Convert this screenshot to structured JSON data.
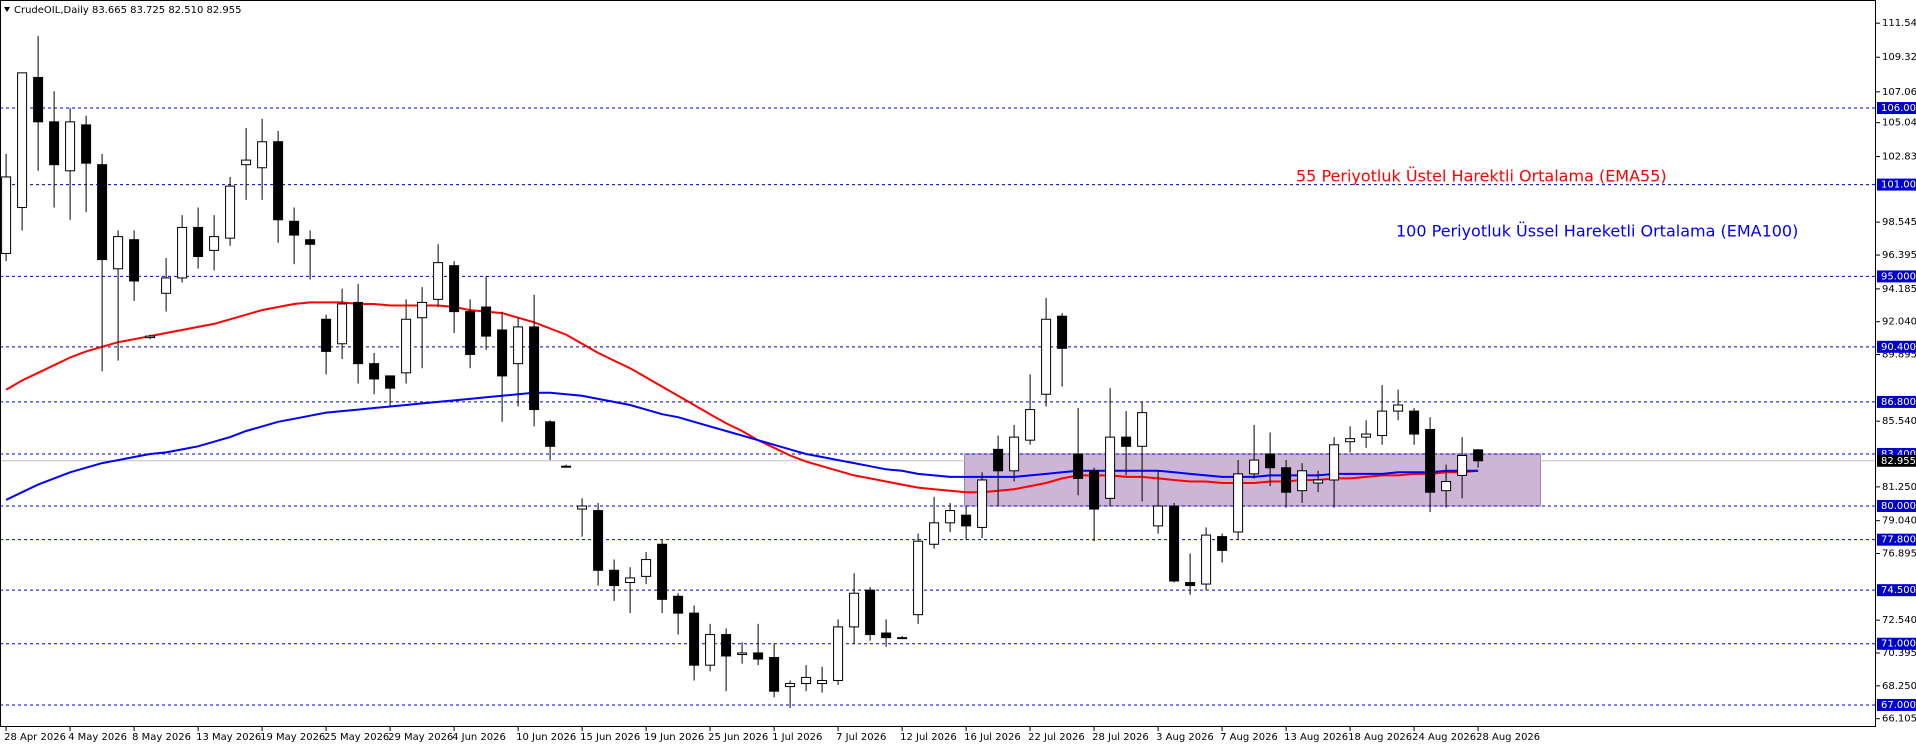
{
  "chart_data": {
    "type": "candlestick",
    "title": "CrudeOIL,Daily  83.665 83.725 82.510 82.955",
    "categories": [
      "28 Apr 2026",
      null,
      null,
      null,
      "4 May 2026",
      null,
      null,
      null,
      "8 May 2026",
      null,
      null,
      null,
      "13 May 2026",
      null,
      null,
      null,
      "19 May 2026",
      null,
      null,
      null,
      "25 May 2026",
      null,
      null,
      null,
      "29 May 2026",
      null,
      null,
      null,
      "4 Jun 2026",
      null,
      null,
      null,
      "10 Jun 2026",
      null,
      null,
      null,
      "15 Jun 2026",
      null,
      null,
      null,
      "19 Jun 2026",
      null,
      null,
      null,
      "25 Jun 2026",
      null,
      null,
      null,
      "1 Jul 2026",
      null,
      null,
      null,
      "7 Jul 2026",
      null,
      null,
      null,
      "12 Jul 2026",
      null,
      null,
      null,
      "16 Jul 2026",
      null,
      null,
      null,
      "22 Jul 2026",
      null,
      null,
      null,
      "28 Jul 2026",
      null,
      null,
      null,
      "3 Aug 2026",
      null,
      null,
      null,
      "7 Aug 2026",
      null,
      null,
      null,
      "13 Aug 2026",
      null,
      null,
      null,
      "18 Aug 2026",
      null,
      null,
      null,
      "24 Aug 2026",
      null,
      null,
      null,
      "28 Aug 2026"
    ],
    "open": [
      96.5,
      99.5,
      108.0,
      105.1,
      101.9,
      104.9,
      102.3,
      95.5,
      97.4,
      91.0,
      93.9,
      94.9,
      98.2,
      96.7,
      97.5,
      102.3,
      102.1,
      103.8,
      98.6,
      97.4,
      92.2,
      90.6,
      93.3,
      89.3,
      88.5,
      88.7,
      92.3,
      93.5,
      95.7,
      92.7,
      93.0,
      91.5,
      89.3,
      91.7,
      85.5,
      82.6,
      79.8,
      79.7,
      75.8,
      75.0,
      75.4,
      77.5,
      74.1,
      73.0,
      69.6,
      71.6,
      70.3,
      70.4,
      70.1,
      68.2,
      68.4,
      68.4,
      68.6,
      72.1,
      74.5,
      71.7,
      71.4,
      72.9,
      77.5,
      78.9,
      79.4,
      78.6,
      83.7,
      82.3,
      84.3,
      87.3,
      92.4,
      83.4,
      82.3,
      80.5,
      84.5,
      83.9,
      78.7,
      80.0,
      75.0,
      74.9,
      78.0,
      78.3,
      82.1,
      83.4,
      82.5,
      81.0,
      81.5,
      81.7,
      84.2,
      84.5,
      84.6,
      86.2,
      86.2,
      85.0,
      81.0,
      82.0,
      83.665
    ],
    "high": [
      103,
      108.3,
      110.7,
      107.1,
      106.0,
      105.5,
      103,
      98,
      98,
      91.2,
      96.2,
      99,
      99.5,
      99,
      101.5,
      104.7,
      105.3,
      104.5,
      99.5,
      98,
      92.5,
      94.2,
      94.5,
      90.0,
      88.5,
      93.5,
      94.3,
      97.1,
      96.0,
      93.5,
      95.0,
      92.7,
      92.3,
      93.8,
      85.6,
      82.7,
      80.5,
      80.2,
      76.5,
      76.0,
      77.0,
      77.8,
      74.3,
      73.5,
      72.3,
      72.0,
      71.1,
      72.3,
      71.0,
      68.6,
      69.6,
      69.5,
      72.6,
      75.6,
      74.7,
      72.6,
      71.5,
      78.2,
      80.6,
      80.2,
      80.0,
      82.2,
      84.6,
      85.3,
      88.6,
      93.6,
      92.6,
      86.4,
      82.5,
      87.7,
      86.2,
      86.8,
      82.3,
      80.2,
      76.9,
      78.6,
      78.2,
      83.0,
      85.3,
      84.8,
      83.0,
      82.8,
      82.3,
      84.5,
      85.2,
      85.6,
      87.9,
      87.6,
      86.4,
      85.8,
      82.7,
      84.5,
      83.725
    ],
    "low": [
      96,
      98,
      101.9,
      99.5,
      98.7,
      99.2,
      88.8,
      89.5,
      93.4,
      90.9,
      92.7,
      94.6,
      95.5,
      95.4,
      97.0,
      100.0,
      100.0,
      97.2,
      95.8,
      94.8,
      88.6,
      89.6,
      88.0,
      87.3,
      86.5,
      88.0,
      89.0,
      93.0,
      91.3,
      89.0,
      90.2,
      85.5,
      86.5,
      85.2,
      83.0,
      82.5,
      78.0,
      74.8,
      73.8,
      73.0,
      74.9,
      73.0,
      71.6,
      68.6,
      69.2,
      67.9,
      69.7,
      69.6,
      67.5,
      66.8,
      67.9,
      67.8,
      68.3,
      71.0,
      71.2,
      70.8,
      71.3,
      72.3,
      77.2,
      78.3,
      77.8,
      77.9,
      80.0,
      81.6,
      84.0,
      86.5,
      87.8,
      80.7,
      77.7,
      80.0,
      82.0,
      80.3,
      78.2,
      75.0,
      74.2,
      74.5,
      76.3,
      77.8,
      81.8,
      81.3,
      79.9,
      80.2,
      80.9,
      79.9,
      83.5,
      83.8,
      84.0,
      85.6,
      84.0,
      79.6,
      79.9,
      80.5,
      82.51
    ],
    "close": [
      101.5,
      108.3,
      105.1,
      102.3,
      105.1,
      102.4,
      96.1,
      97.6,
      94.7,
      91.1,
      94.9,
      98.2,
      96.3,
      97.6,
      100.9,
      102.6,
      103.8,
      98.7,
      97.7,
      97.1,
      90.1,
      93.2,
      89.3,
      88.3,
      87.7,
      92.2,
      93.3,
      95.9,
      92.7,
      89.9,
      91.1,
      88.5,
      91.7,
      86.3,
      83.9,
      82.6,
      80.0,
      75.8,
      74.8,
      75.3,
      76.5,
      73.9,
      73.0,
      69.6,
      71.6,
      70.2,
      70.4,
      70.0,
      67.9,
      68.4,
      68.8,
      68.6,
      72.1,
      74.3,
      71.6,
      71.4,
      71.4,
      77.7,
      78.9,
      79.7,
      78.7,
      81.7,
      82.3,
      84.5,
      86.3,
      92.2,
      90.3,
      81.8,
      79.8,
      84.5,
      83.9,
      86.1,
      80.0,
      75.1,
      74.8,
      78.1,
      77.1,
      82.1,
      83.0,
      82.5,
      80.9,
      82.3,
      81.7,
      84.0,
      84.4,
      84.7,
      86.2,
      86.6,
      84.7,
      80.9,
      81.6,
      83.3,
      82.955
    ],
    "up_color": "#ffffff",
    "down_color": "#000000",
    "series": [
      {
        "name": "55 Periyotluk Üstel Harektli Ortalama (EMA55)",
        "color": "#ff0000",
        "values": [
          87.6,
          88.2,
          88.7,
          89.2,
          89.7,
          90.1,
          90.4,
          90.7,
          90.9,
          91.1,
          91.3,
          91.5,
          91.7,
          91.9,
          92.2,
          92.5,
          92.8,
          93.0,
          93.2,
          93.3,
          93.3,
          93.3,
          93.2,
          93.2,
          93.1,
          93.1,
          93.1,
          93.1,
          93.0,
          92.8,
          92.7,
          92.6,
          92.3,
          92.0,
          91.6,
          91.2,
          90.6,
          90.0,
          89.5,
          89.0,
          88.4,
          87.8,
          87.2,
          86.6,
          86.0,
          85.4,
          84.9,
          84.3,
          83.8,
          83.3,
          82.9,
          82.6,
          82.3,
          82.0,
          81.8,
          81.6,
          81.4,
          81.2,
          81.1,
          81.0,
          80.9,
          80.9,
          81.0,
          81.1,
          81.3,
          81.5,
          81.8,
          82.0,
          82.0,
          82.0,
          81.9,
          81.9,
          81.8,
          81.7,
          81.6,
          81.6,
          81.5,
          81.5,
          81.5,
          81.6,
          81.6,
          81.7,
          81.7,
          81.8,
          81.8,
          81.9,
          82.0,
          82.0,
          82.1,
          82.1,
          82.2,
          82.2,
          82.3
        ]
      },
      {
        "name": "100 Periyotluk Üssel Hareketli Ortalama (EMA100)",
        "color": "#0000ff",
        "values": [
          80.4,
          80.9,
          81.4,
          81.8,
          82.2,
          82.5,
          82.8,
          83.0,
          83.2,
          83.4,
          83.5,
          83.7,
          83.9,
          84.2,
          84.5,
          84.9,
          85.2,
          85.5,
          85.7,
          85.9,
          86.1,
          86.2,
          86.3,
          86.4,
          86.5,
          86.6,
          86.7,
          86.8,
          86.9,
          87.0,
          87.1,
          87.2,
          87.3,
          87.4,
          87.4,
          87.3,
          87.2,
          87.0,
          86.8,
          86.6,
          86.3,
          86.0,
          85.8,
          85.5,
          85.2,
          84.9,
          84.6,
          84.3,
          84.0,
          83.7,
          83.4,
          83.2,
          83.0,
          82.8,
          82.6,
          82.4,
          82.3,
          82.1,
          82.0,
          81.9,
          81.9,
          81.9,
          81.9,
          81.9,
          82.0,
          82.1,
          82.2,
          82.3,
          82.3,
          82.3,
          82.3,
          82.3,
          82.3,
          82.2,
          82.1,
          82.0,
          81.9,
          81.9,
          81.9,
          82.0,
          82.0,
          82.0,
          82.0,
          82.1,
          82.1,
          82.1,
          82.1,
          82.2,
          82.2,
          82.2,
          82.3,
          82.3,
          82.3
        ]
      }
    ],
    "ylim": [
      65.56,
      113.06
    ],
    "yticks": [
      111.545,
      {
        "value": 109.32,
        "label": "109.320"
      },
      {
        "value": 107.06,
        "label": "107.060"
      },
      105.045,
      {
        "value": 102.83,
        "label": "102.830"
      },
      98.545,
      96.395,
      94.185,
      {
        "value": 92.04,
        "label": "92.040"
      },
      89.895,
      {
        "value": 85.54,
        "label": "85.540"
      },
      {
        "value": 81.25,
        "label": "81.250"
      },
      {
        "value": 79.04,
        "label": "79.040"
      },
      76.895,
      {
        "value": 72.54,
        "label": "72.540"
      },
      70.395,
      {
        "value": 68.25,
        "label": "68.250"
      },
      66.105
    ],
    "levels": [
      {
        "value": 106,
        "label": "106.000"
      },
      {
        "value": 101,
        "label": "101.000"
      },
      {
        "value": 95,
        "label": "95.000"
      },
      {
        "value": 90.4,
        "label": "90.400"
      },
      {
        "value": 86.8,
        "label": "86.800"
      },
      {
        "value": 83.4,
        "label": "83.400"
      },
      {
        "value": 80,
        "label": "80.000"
      },
      {
        "value": 77.8,
        "label": "77.800"
      },
      {
        "value": 74.5,
        "label": "74.500"
      },
      {
        "value": 71,
        "label": "71.000"
      },
      {
        "value": 67,
        "label": "67.000"
      }
    ],
    "level_color": "#0000cd",
    "current_price": 82.955,
    "zone": {
      "high": 83.4,
      "low": 80,
      "color": "#cdb5d8"
    }
  }
}
